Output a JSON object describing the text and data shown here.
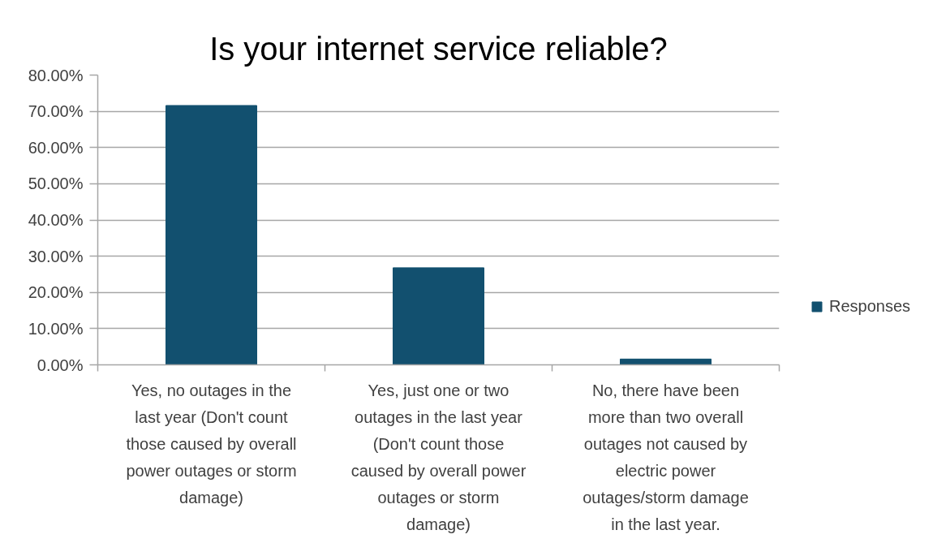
{
  "chart_data": {
    "type": "bar",
    "title": "Is your internet service reliable?",
    "categories": [
      "Yes, no outages in the last year (Don't count those caused by overall power outages or storm damage)",
      "Yes, just one or two outages in the last year (Don't count those caused by overall power outages or storm damage)",
      "No, there have been more than two overall outages not caused by electric power outages/storm damage in the last year."
    ],
    "series": [
      {
        "name": "Responses",
        "color": "#12506f",
        "values": [
          71.6,
          26.8,
          1.6
        ]
      }
    ],
    "ylim": [
      0,
      80
    ],
    "yticks": [
      {
        "value": 0,
        "label": "0.00%"
      },
      {
        "value": 10,
        "label": "10.00%"
      },
      {
        "value": 20,
        "label": "20.00%"
      },
      {
        "value": 30,
        "label": "30.00%"
      },
      {
        "value": 40,
        "label": "40.00%"
      },
      {
        "value": 50,
        "label": "50.00%"
      },
      {
        "value": 60,
        "label": "60.00%"
      },
      {
        "value": 70,
        "label": "70.00%"
      },
      {
        "value": 80,
        "label": "80.00%"
      }
    ],
    "grid": "y",
    "legend": "right"
  }
}
